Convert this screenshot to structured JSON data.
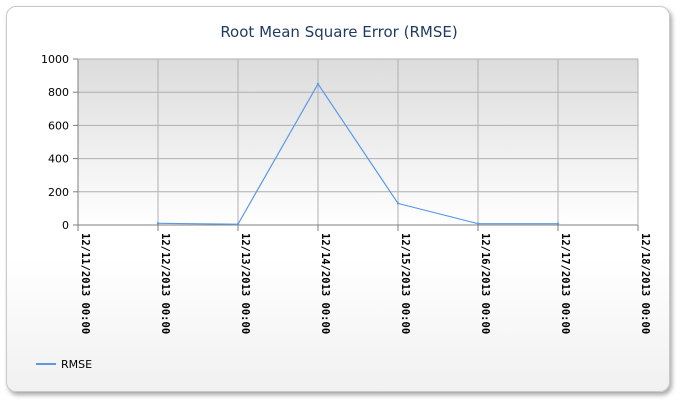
{
  "chart_data": {
    "type": "line",
    "title": "Root Mean Square Error (RMSE)",
    "xlabel": "",
    "ylabel": "",
    "categories": [
      "12/11/2013 00:00",
      "12/12/2013 00:00",
      "12/13/2013 00:00",
      "12/14/2013 00:00",
      "12/15/2013 00:00",
      "12/16/2013 00:00",
      "12/17/2013 00:00",
      "12/18/2013 00:00"
    ],
    "series": [
      {
        "name": "RMSE",
        "color": "#5b9be6",
        "values": [
          null,
          10,
          5,
          850,
          130,
          8,
          8,
          null
        ]
      }
    ],
    "ylim": [
      0,
      1000
    ],
    "yticks": [
      "0",
      "200",
      "400",
      "600",
      "800",
      "1000"
    ],
    "grid": true,
    "legend": "bottom-left",
    "colors": {
      "plot_bg_top": "#dcdcdc",
      "plot_bg_bottom": "#ffffff",
      "grid": "#b0b0b0",
      "axis": "#7f7f7f",
      "title": "#1f3a5f"
    }
  }
}
